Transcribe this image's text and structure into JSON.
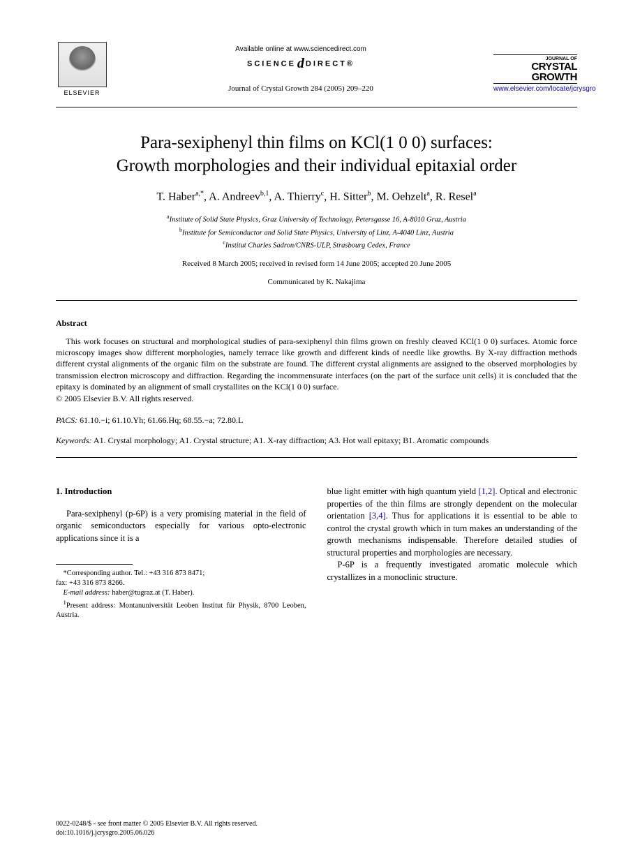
{
  "header": {
    "publisher_name": "ELSEVIER",
    "available_text": "Available online at www.sciencedirect.com",
    "science_direct_left": "SCIENCE",
    "science_direct_right": "DIRECT®",
    "journal_citation": "Journal of Crystal Growth 284 (2005) 209–220",
    "journal_label": "JOURNAL OF",
    "journal_name_1": "CRYSTAL",
    "journal_name_2": "GROWTH",
    "journal_url": "www.elsevier.com/locate/jcrysgro"
  },
  "title_line1": "Para-sexiphenyl thin films on KCl(1 0 0) surfaces:",
  "title_line2": "Growth morphologies and their individual epitaxial order",
  "authors_html": "T. Haber<sup>a,*</sup>, A. Andreev<sup>b,1</sup>, A. Thierry<sup>c</sup>, H. Sitter<sup>b</sup>, M. Oehzelt<sup>a</sup>, R. Resel<sup>a</sup>",
  "affiliations": {
    "a": "Institute of Solid State Physics, Graz University of Technology, Petersgasse 16, A-8010 Graz, Austria",
    "b": "Institute for Semiconductor and Solid State Physics, University of Linz, A-4040 Linz, Austria",
    "c": "Institut Charles Sadron/CNRS-ULP, Strasbourg Cedex, France"
  },
  "dates": "Received 8 March 2005; received in revised form 14 June 2005; accepted 20 June 2005",
  "communicated": "Communicated by K. Nakajima",
  "abstract": {
    "heading": "Abstract",
    "text": "This work focuses on structural and morphological studies of para-sexiphenyl thin films grown on freshly cleaved KCl(1 0 0) surfaces. Atomic force microscopy images show different morphologies, namely terrace like growth and different kinds of needle like growths. By X-ray diffraction methods different crystal alignments of the organic film on the substrate are found. The different crystal alignments are assigned to the observed morphologies by transmission electron microscopy and diffraction. Regarding the incommensurate interfaces (on the part of the surface unit cells) it is concluded that the epitaxy is dominated by an alignment of small crystallites on the KCl(1 0 0) surface.",
    "copyright": "© 2005 Elsevier B.V. All rights reserved."
  },
  "pacs": {
    "label": "PACS:",
    "codes": "61.10.−i; 61.10.Yh; 61.66.Hq; 68.55.−a; 72.80.L"
  },
  "keywords": {
    "label": "Keywords:",
    "text": "A1. Crystal morphology; A1. Crystal structure; A1. X-ray diffraction; A3. Hot wall epitaxy; B1. Aromatic compounds"
  },
  "body": {
    "section_heading": "1. Introduction",
    "col1_para1": "Para-sexiphenyl (p-6P) is a very promising material in the field of organic semiconductors especially for various opto-electronic applications since it is a",
    "col2_para1_pre": "blue light emitter with high quantum yield ",
    "col2_para1_ref1": "[1,2]",
    "col2_para1_mid": ". Optical and electronic properties of the thin films are strongly dependent on the molecular orientation ",
    "col2_para1_ref2": "[3,4]",
    "col2_para1_post": ". Thus for applications it is essential to be able to control the crystal growth which in turn makes an understanding of the growth mechanisms indispensable. Therefore detailed studies of structural properties and morphologies are necessary.",
    "col2_para2": "P-6P is a frequently investigated aromatic molecule which crystallizes in a monoclinic structure."
  },
  "footnotes": {
    "corr_label": "*Corresponding author. Tel.: +43 316 873 8471;",
    "corr_fax": "fax: +43 316 873 8266.",
    "email_label": "E-mail address:",
    "email": "haber@tugraz.at (T. Haber).",
    "present_label": "1",
    "present_text": "Present address: Montanuniversität Leoben Institut für Physik, 8700 Leoben, Austria."
  },
  "footer": {
    "line1": "0022-0248/$ - see front matter © 2005 Elsevier B.V. All rights reserved.",
    "line2": "doi:10.1016/j.jcrysgro.2005.06.026"
  },
  "colors": {
    "text": "#000000",
    "link": "#0000cc",
    "background": "#ffffff"
  },
  "typography": {
    "title_fontsize": 25,
    "author_fontsize": 16,
    "body_fontsize": 12.5,
    "abstract_fontsize": 12,
    "footnote_fontsize": 10.5,
    "footer_fontsize": 10,
    "font_family": "Georgia, Times New Roman, serif"
  }
}
